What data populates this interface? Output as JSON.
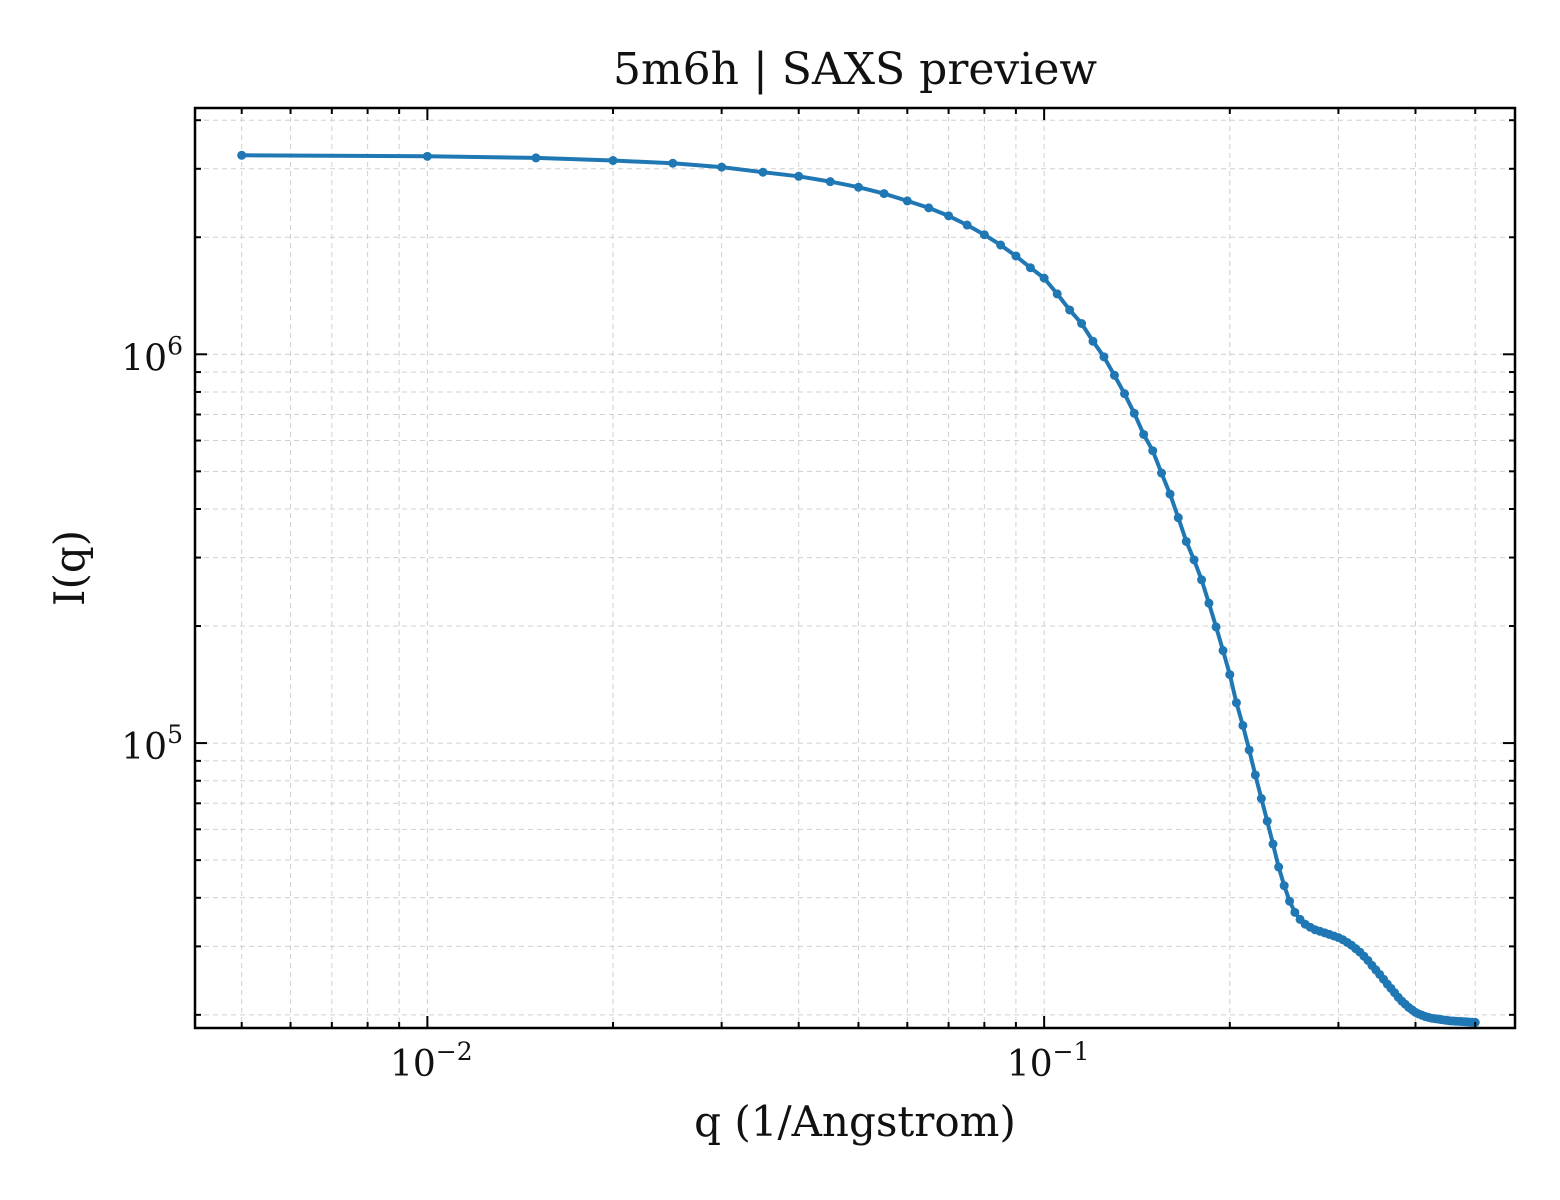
{
  "chart_data": {
    "type": "line",
    "title": "5m6h | SAXS preview",
    "xlabel": "q (1/Angstrom)",
    "ylabel": "I(q)",
    "xscale": "log",
    "yscale": "log",
    "xlim": [
      0.0042,
      0.58
    ],
    "ylim": [
      18500,
      4300000
    ],
    "grid": true,
    "grid_style": "dashed",
    "legend": "none",
    "marker": "dot",
    "color": "#1f77b4",
    "x_ticks": [
      {
        "value": 0.01,
        "base": "10",
        "exp": "−2"
      },
      {
        "value": 0.1,
        "base": "10",
        "exp": "−1"
      }
    ],
    "y_ticks": [
      {
        "value": 100000,
        "base": "10",
        "exp": "5"
      },
      {
        "value": 1000000,
        "base": "10",
        "exp": "6"
      }
    ],
    "series": [
      {
        "x": [
          0.005,
          0.01,
          0.015,
          0.02,
          0.025,
          0.03,
          0.035,
          0.04,
          0.045,
          0.05,
          0.055,
          0.06,
          0.065,
          0.07,
          0.075,
          0.08,
          0.085,
          0.09,
          0.095,
          0.1,
          0.105,
          0.11,
          0.115,
          0.12,
          0.125,
          0.13,
          0.135,
          0.14,
          0.145,
          0.15,
          0.155,
          0.16,
          0.165,
          0.17,
          0.175,
          0.18,
          0.185,
          0.19,
          0.195,
          0.2,
          0.205,
          0.21,
          0.215,
          0.22,
          0.225,
          0.23,
          0.235,
          0.24,
          0.245,
          0.25,
          0.255,
          0.26,
          0.265,
          0.27,
          0.275,
          0.28,
          0.285,
          0.29,
          0.295,
          0.3,
          0.305,
          0.31,
          0.315,
          0.32,
          0.325,
          0.33,
          0.335,
          0.34,
          0.345,
          0.35,
          0.355,
          0.36,
          0.365,
          0.37,
          0.375,
          0.38,
          0.385,
          0.39,
          0.395,
          0.4,
          0.405,
          0.41,
          0.415,
          0.42,
          0.425,
          0.43,
          0.435,
          0.44,
          0.445,
          0.45,
          0.455,
          0.46,
          0.465,
          0.47,
          0.475,
          0.48,
          0.485,
          0.49,
          0.495,
          0.5
        ],
        "y": [
          3250000,
          3230000,
          3200000,
          3150000,
          3100000,
          3030000,
          2940000,
          2870000,
          2780000,
          2690000,
          2590000,
          2480000,
          2380000,
          2270000,
          2150000,
          2030000,
          1910000,
          1790000,
          1670000,
          1570000,
          1430000,
          1300000,
          1200000,
          1080000,
          985000,
          883000,
          792000,
          705000,
          622000,
          565000,
          495000,
          437000,
          380000,
          330000,
          296000,
          263000,
          229000,
          199000,
          173000,
          150000,
          127000,
          111000,
          96000,
          82800,
          72000,
          63000,
          55000,
          48000,
          43000,
          39200,
          36700,
          35200,
          34200,
          33600,
          33100,
          32800,
          32500,
          32200,
          31900,
          31600,
          31200,
          30700,
          30200,
          29600,
          29000,
          28300,
          27600,
          26800,
          26100,
          25400,
          24700,
          24000,
          23400,
          22800,
          22200,
          21700,
          21300,
          20900,
          20600,
          20300,
          20100,
          19950,
          19800,
          19700,
          19600,
          19550,
          19500,
          19450,
          19400,
          19350,
          19300,
          19280,
          19260,
          19240,
          19220,
          19200,
          19180,
          19160,
          19140,
          19120
        ]
      }
    ]
  }
}
